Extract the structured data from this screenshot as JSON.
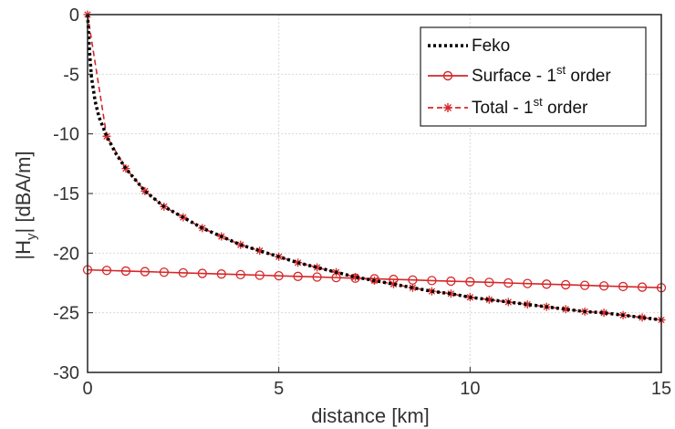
{
  "chart_data": {
    "type": "line",
    "title": "",
    "xlabel": "distance [km]",
    "ylabel": "|H",
    "ylabel_sub": "y",
    "ylabel_suffix": "| [dBA/m]",
    "xlim": [
      0,
      15
    ],
    "ylim": [
      -30,
      0
    ],
    "xticks": [
      0,
      5,
      10,
      15
    ],
    "yticks": [
      0,
      -5,
      -10,
      -15,
      -20,
      -25,
      -30
    ],
    "grid": true,
    "legend_position": "top-right",
    "series": [
      {
        "name": "Feko",
        "color": "#000000",
        "style": "dotted",
        "marker": "none",
        "x": [
          0,
          0.05,
          0.1,
          0.2,
          0.3,
          0.5,
          0.75,
          1.0,
          1.5,
          2.0,
          2.5,
          3.0,
          3.5,
          4.0,
          4.5,
          5.0,
          5.5,
          6.0,
          6.5,
          7.0,
          7.5,
          8.0,
          8.5,
          9.0,
          9.5,
          10.0,
          10.5,
          11.0,
          11.5,
          12.0,
          12.5,
          13.0,
          13.5,
          14.0,
          14.5,
          15.0
        ],
        "y": [
          0,
          -3.0,
          -5.2,
          -7.3,
          -8.6,
          -10.2,
          -11.7,
          -12.9,
          -14.8,
          -16.1,
          -17.0,
          -17.9,
          -18.6,
          -19.3,
          -19.8,
          -20.3,
          -20.8,
          -21.2,
          -21.6,
          -22.0,
          -22.3,
          -22.6,
          -22.9,
          -23.2,
          -23.4,
          -23.7,
          -23.9,
          -24.1,
          -24.3,
          -24.5,
          -24.7,
          -24.9,
          -25.0,
          -25.2,
          -25.4,
          -25.6
        ]
      },
      {
        "name": "Surface - 1st order",
        "label_main": "Surface - 1",
        "label_sup": "st",
        "label_tail": " order",
        "color": "#d62728",
        "style": "solid",
        "marker": "circle",
        "x": [
          0,
          0.5,
          1.0,
          1.5,
          2.0,
          2.5,
          3.0,
          3.5,
          4.0,
          4.5,
          5.0,
          5.5,
          6.0,
          6.5,
          7.0,
          7.5,
          8.0,
          8.5,
          9.0,
          9.5,
          10.0,
          10.5,
          11.0,
          11.5,
          12.0,
          12.5,
          13.0,
          13.5,
          14.0,
          14.5,
          15.0
        ],
        "y": [
          -21.4,
          -21.45,
          -21.5,
          -21.55,
          -21.6,
          -21.65,
          -21.7,
          -21.75,
          -21.8,
          -21.85,
          -21.9,
          -21.95,
          -22.0,
          -22.05,
          -22.1,
          -22.15,
          -22.2,
          -22.25,
          -22.3,
          -22.35,
          -22.4,
          -22.45,
          -22.5,
          -22.55,
          -22.6,
          -22.65,
          -22.7,
          -22.75,
          -22.8,
          -22.85,
          -22.9
        ]
      },
      {
        "name": "Total - 1st order",
        "label_main": "Total - 1",
        "label_sup": "st",
        "label_tail": " order",
        "color": "#d62728",
        "style": "dashed",
        "marker": "asterisk",
        "x": [
          0,
          0.5,
          1.0,
          1.5,
          2.0,
          2.5,
          3.0,
          3.5,
          4.0,
          4.5,
          5.0,
          5.5,
          6.0,
          6.5,
          7.0,
          7.5,
          8.0,
          8.5,
          9.0,
          9.5,
          10.0,
          10.5,
          11.0,
          11.5,
          12.0,
          12.5,
          13.0,
          13.5,
          14.0,
          14.5,
          15.0
        ],
        "y": [
          0,
          -10.2,
          -12.9,
          -14.8,
          -16.1,
          -17.0,
          -17.9,
          -18.6,
          -19.3,
          -19.8,
          -20.3,
          -20.8,
          -21.2,
          -21.6,
          -22.0,
          -22.3,
          -22.6,
          -22.9,
          -23.2,
          -23.4,
          -23.7,
          -23.9,
          -24.1,
          -24.3,
          -24.5,
          -24.7,
          -24.9,
          -25.0,
          -25.2,
          -25.4,
          -25.6
        ]
      }
    ]
  }
}
